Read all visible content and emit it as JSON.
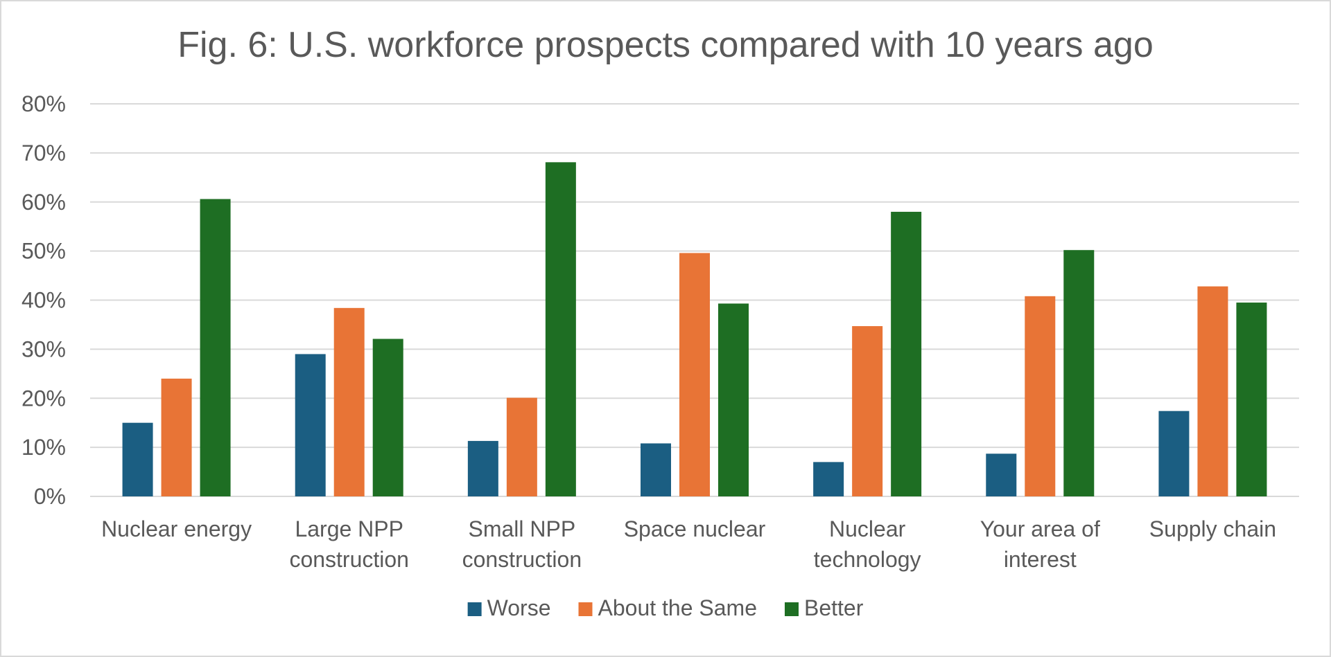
{
  "chart_data": {
    "type": "bar",
    "title": "Fig. 6: U.S. workforce prospects compared with 10 years ago",
    "xlabel": "",
    "ylabel": "",
    "ylim": [
      0,
      80
    ],
    "yticks": [
      "0%",
      "10%",
      "20%",
      "30%",
      "40%",
      "50%",
      "60%",
      "70%",
      "80%"
    ],
    "grid": true,
    "legend_position": "bottom",
    "categories": [
      [
        "Nuclear energy"
      ],
      [
        "Large NPP",
        "construction"
      ],
      [
        "Small NPP",
        "construction"
      ],
      [
        "Space nuclear"
      ],
      [
        "Nuclear",
        "technology"
      ],
      [
        "Your area of",
        "interest"
      ],
      [
        "Supply chain"
      ]
    ],
    "series": [
      {
        "name": "Worse",
        "color": "#1b5e82",
        "values": [
          15,
          29,
          11.3,
          10.8,
          7,
          8.7,
          17.4
        ]
      },
      {
        "name": "About the Same",
        "color": "#e87436",
        "values": [
          24,
          38.4,
          20.1,
          49.6,
          34.7,
          40.8,
          42.8
        ]
      },
      {
        "name": "Better",
        "color": "#1e6e23",
        "values": [
          60.6,
          32.1,
          68.1,
          39.3,
          58,
          50.2,
          39.5
        ]
      }
    ]
  }
}
